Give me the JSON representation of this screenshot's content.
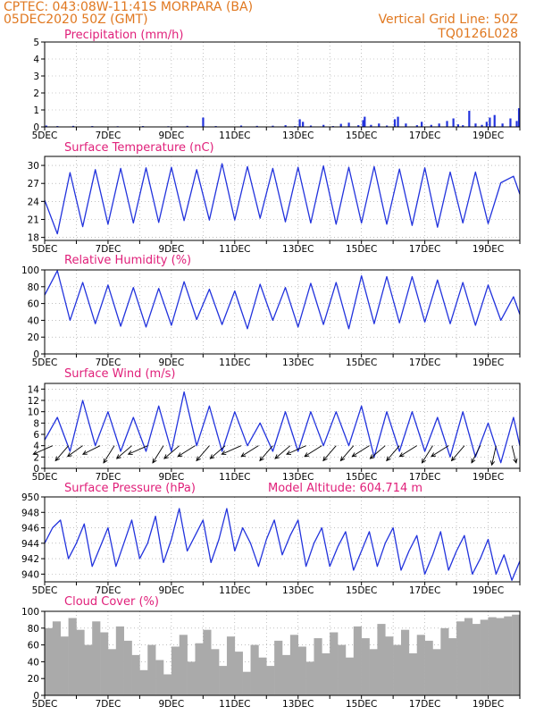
{
  "header": {
    "line1": "CPTEC:  043:08W-11:41S   MORPARA (BA)",
    "line2": "05DEC2020 50Z (GMT)",
    "right1": "Vertical Grid Line: 50Z",
    "right2": "TQ0126L028"
  },
  "colors": {
    "header": "#e07820",
    "title": "#e0207a",
    "line": "#2233dd",
    "bar": "#aaaaaa",
    "arrow": "#000000",
    "grid": "#999999"
  },
  "x_axis": {
    "start_day": 5,
    "end_day": 20,
    "labels": [
      {
        "day": 5,
        "label": "5DEC"
      },
      {
        "day": 7,
        "label": "7DEC"
      },
      {
        "day": 9,
        "label": "9DEC"
      },
      {
        "day": 11,
        "label": "11DEC"
      },
      {
        "day": 13,
        "label": "13DEC"
      },
      {
        "day": 15,
        "label": "15DEC"
      },
      {
        "day": 17,
        "label": "17DEC"
      },
      {
        "day": 19,
        "label": "19DEC"
      }
    ]
  },
  "chart_data": [
    {
      "id": "precip",
      "type": "bar",
      "title": "Precipitation (mm/h)",
      "ylim": [
        0,
        5
      ],
      "yticks": [
        0,
        1,
        2,
        3,
        4,
        5
      ],
      "grid": true,
      "x_days": [
        5.05,
        5.4,
        5.9,
        6.5,
        7.3,
        8.1,
        8.9,
        9.5,
        10.0,
        10.4,
        11.2,
        11.7,
        12.2,
        12.6,
        12.9,
        13.05,
        13.15,
        13.4,
        13.8,
        14.1,
        14.35,
        14.6,
        14.9,
        15.05,
        15.1,
        15.3,
        15.55,
        15.8,
        16.05,
        16.15,
        16.4,
        16.75,
        16.9,
        17.2,
        17.45,
        17.7,
        17.9,
        18.05,
        18.2,
        18.4,
        18.6,
        18.8,
        18.95,
        19.05,
        19.2,
        19.45,
        19.7,
        19.9,
        19.97
      ],
      "values": [
        0.08,
        0.05,
        0.06,
        0.05,
        0.04,
        0.05,
        0.04,
        0.06,
        0.55,
        0.05,
        0.08,
        0.06,
        0.07,
        0.1,
        0.05,
        0.45,
        0.3,
        0.08,
        0.12,
        0.05,
        0.18,
        0.25,
        0.1,
        0.4,
        0.6,
        0.12,
        0.2,
        0.08,
        0.45,
        0.6,
        0.2,
        0.1,
        0.3,
        0.12,
        0.2,
        0.35,
        0.5,
        0.15,
        0.1,
        0.95,
        0.2,
        0.12,
        0.3,
        0.55,
        0.7,
        0.2,
        0.5,
        0.35,
        1.1
      ]
    },
    {
      "id": "temp",
      "type": "line",
      "title": "Surface Temperature (nC)",
      "ylim": [
        17.5,
        31.5
      ],
      "yticks": [
        18,
        21,
        24,
        27,
        30
      ],
      "grid": true,
      "x_days": [
        5.0,
        5.4,
        5.8,
        6.2,
        6.6,
        7.0,
        7.4,
        7.8,
        8.2,
        8.6,
        9.0,
        9.4,
        9.8,
        10.2,
        10.6,
        11.0,
        11.4,
        11.8,
        12.2,
        12.6,
        13.0,
        13.4,
        13.8,
        14.2,
        14.6,
        15.0,
        15.4,
        15.8,
        16.2,
        16.6,
        17.0,
        17.4,
        17.8,
        18.2,
        18.6,
        19.0,
        19.4,
        19.8,
        20.0
      ],
      "values": [
        24.2,
        18.6,
        28.8,
        19.8,
        29.3,
        20.2,
        29.5,
        20.4,
        29.6,
        20.5,
        29.7,
        20.8,
        29.3,
        20.9,
        30.3,
        20.9,
        29.8,
        21.2,
        29.5,
        20.6,
        29.7,
        20.4,
        29.9,
        20.2,
        29.7,
        20.4,
        29.8,
        20.2,
        29.4,
        20.0,
        29.6,
        19.7,
        28.9,
        20.4,
        28.9,
        20.3,
        27.1,
        28.2,
        25.2
      ]
    },
    {
      "id": "rh",
      "type": "line",
      "title": "Relative Humidity (%)",
      "ylim": [
        0,
        100
      ],
      "yticks": [
        0,
        20,
        40,
        60,
        80,
        100
      ],
      "grid": true,
      "x_days": [
        5.0,
        5.4,
        5.8,
        6.2,
        6.6,
        7.0,
        7.4,
        7.8,
        8.2,
        8.6,
        9.0,
        9.4,
        9.8,
        10.2,
        10.6,
        11.0,
        11.4,
        11.8,
        12.2,
        12.6,
        13.0,
        13.4,
        13.8,
        14.2,
        14.6,
        15.0,
        15.4,
        15.8,
        16.2,
        16.6,
        17.0,
        17.4,
        17.8,
        18.2,
        18.6,
        19.0,
        19.4,
        19.8,
        20.0
      ],
      "values": [
        70,
        99,
        40,
        85,
        36,
        82,
        33,
        79,
        32,
        78,
        34,
        86,
        41,
        77,
        35,
        75,
        30,
        83,
        40,
        79,
        32,
        84,
        35,
        85,
        30,
        93,
        36,
        92,
        37,
        92,
        38,
        88,
        36,
        85,
        34,
        82,
        40,
        68,
        47
      ]
    },
    {
      "id": "wind",
      "type": "line",
      "title": "Surface Wind (m/s)",
      "ylim": [
        0,
        15
      ],
      "yticks": [
        0,
        2,
        4,
        6,
        8,
        10,
        12,
        14
      ],
      "grid": true,
      "x_days": [
        5.0,
        5.4,
        5.8,
        6.2,
        6.6,
        7.0,
        7.4,
        7.8,
        8.2,
        8.6,
        9.0,
        9.4,
        9.8,
        10.2,
        10.6,
        11.0,
        11.4,
        11.8,
        12.2,
        12.6,
        13.0,
        13.4,
        13.8,
        14.2,
        14.6,
        15.0,
        15.4,
        15.8,
        16.2,
        16.6,
        17.0,
        17.4,
        17.8,
        18.2,
        18.6,
        19.0,
        19.4,
        19.8,
        20.0
      ],
      "values": [
        5,
        9,
        3,
        12,
        4,
        10,
        3,
        9,
        3,
        11,
        3,
        13.5,
        4,
        11,
        3,
        10,
        4,
        8,
        3,
        10,
        3,
        10,
        4,
        10,
        4,
        11,
        2,
        10,
        3,
        10,
        3,
        9,
        2,
        10,
        2,
        8,
        1,
        9,
        4
      ],
      "arrow_days": [
        5.25,
        5.75,
        6.2,
        6.75,
        7.2,
        7.75,
        8.25,
        8.75,
        9.25,
        9.75,
        10.2,
        10.7,
        11.2,
        11.75,
        12.2,
        12.75,
        13.25,
        13.75,
        14.2,
        14.75,
        15.25,
        15.75,
        16.2,
        16.75,
        17.25,
        17.75,
        18.25,
        18.75,
        19.25,
        19.75
      ],
      "arrow_dx": [
        -0.9,
        -0.6,
        -0.7,
        -0.8,
        -0.5,
        -0.7,
        -0.9,
        -0.5,
        -0.7,
        -0.8,
        -0.6,
        -0.7,
        -0.9,
        -0.8,
        -0.6,
        -0.7,
        -0.9,
        -0.8,
        -0.6,
        -0.6,
        -0.8,
        -0.7,
        -0.6,
        -0.8,
        -0.5,
        -0.8,
        -0.6,
        -0.4,
        -0.2,
        0.2
      ],
      "arrow_dy": [
        -0.4,
        -0.7,
        -0.5,
        -0.4,
        -0.8,
        -0.6,
        -0.4,
        -0.8,
        -0.6,
        -0.5,
        -0.7,
        -0.6,
        -0.4,
        -0.5,
        -0.7,
        -0.6,
        -0.4,
        -0.5,
        -0.7,
        -0.7,
        -0.5,
        -0.6,
        -0.7,
        -0.5,
        -0.8,
        -0.5,
        -0.7,
        -0.8,
        -0.9,
        -0.8
      ]
    },
    {
      "id": "pres",
      "type": "line",
      "title": "Surface Pressure (hPa)",
      "subtitle": "Model Altitude: 604.714  m",
      "ylim": [
        939,
        950
      ],
      "yticks": [
        940,
        942,
        944,
        946,
        948,
        950
      ],
      "grid": true,
      "x_days": [
        5.0,
        5.25,
        5.5,
        5.75,
        6.0,
        6.25,
        6.5,
        6.75,
        7.0,
        7.25,
        7.5,
        7.75,
        8.0,
        8.25,
        8.5,
        8.75,
        9.0,
        9.25,
        9.5,
        9.75,
        10.0,
        10.25,
        10.5,
        10.75,
        11.0,
        11.25,
        11.5,
        11.75,
        12.0,
        12.25,
        12.5,
        12.75,
        13.0,
        13.25,
        13.5,
        13.75,
        14.0,
        14.25,
        14.5,
        14.75,
        15.0,
        15.25,
        15.5,
        15.75,
        16.0,
        16.25,
        16.5,
        16.75,
        17.0,
        17.25,
        17.5,
        17.75,
        18.0,
        18.25,
        18.5,
        18.75,
        19.0,
        19.25,
        19.5,
        19.75,
        20.0
      ],
      "values": [
        944,
        946,
        947,
        942,
        944,
        946.5,
        941,
        943.5,
        946,
        941,
        944,
        947,
        942,
        944,
        947.5,
        941.5,
        944.5,
        948.5,
        943,
        945,
        947,
        941.5,
        944.5,
        948.5,
        943,
        946,
        944,
        941,
        944.5,
        947,
        942.5,
        945,
        947,
        941,
        944,
        946,
        941,
        943.5,
        945.5,
        940.5,
        943,
        945.5,
        941,
        944,
        946,
        940.5,
        943,
        945,
        940,
        942.5,
        945.5,
        940.5,
        943,
        945,
        940,
        942,
        944.5,
        940,
        942.5,
        939.2,
        941.7
      ]
    },
    {
      "id": "cloud",
      "type": "bar",
      "title": "Cloud Cover (%)",
      "ylim": [
        0,
        100
      ],
      "yticks": [
        0,
        20,
        40,
        60,
        80,
        100
      ],
      "grid": true,
      "x_days": [
        5.0,
        5.25,
        5.5,
        5.75,
        6.0,
        6.25,
        6.5,
        6.75,
        7.0,
        7.25,
        7.5,
        7.75,
        8.0,
        8.25,
        8.5,
        8.75,
        9.0,
        9.25,
        9.5,
        9.75,
        10.0,
        10.25,
        10.5,
        10.75,
        11.0,
        11.25,
        11.5,
        11.75,
        12.0,
        12.25,
        12.5,
        12.75,
        13.0,
        13.25,
        13.5,
        13.75,
        14.0,
        14.25,
        14.5,
        14.75,
        15.0,
        15.25,
        15.5,
        15.75,
        16.0,
        16.25,
        16.5,
        16.75,
        17.0,
        17.25,
        17.5,
        17.75,
        18.0,
        18.25,
        18.5,
        18.75,
        19.0,
        19.25,
        19.5,
        19.75
      ],
      "values": [
        80,
        88,
        70,
        92,
        78,
        60,
        88,
        75,
        55,
        82,
        65,
        48,
        30,
        60,
        42,
        25,
        58,
        72,
        40,
        62,
        78,
        55,
        35,
        70,
        52,
        28,
        60,
        45,
        35,
        65,
        48,
        72,
        58,
        40,
        68,
        50,
        75,
        60,
        45,
        82,
        68,
        55,
        85,
        70,
        60,
        78,
        50,
        72,
        65,
        55,
        80,
        68,
        88,
        92,
        85,
        90,
        93,
        92,
        94,
        96
      ]
    }
  ]
}
